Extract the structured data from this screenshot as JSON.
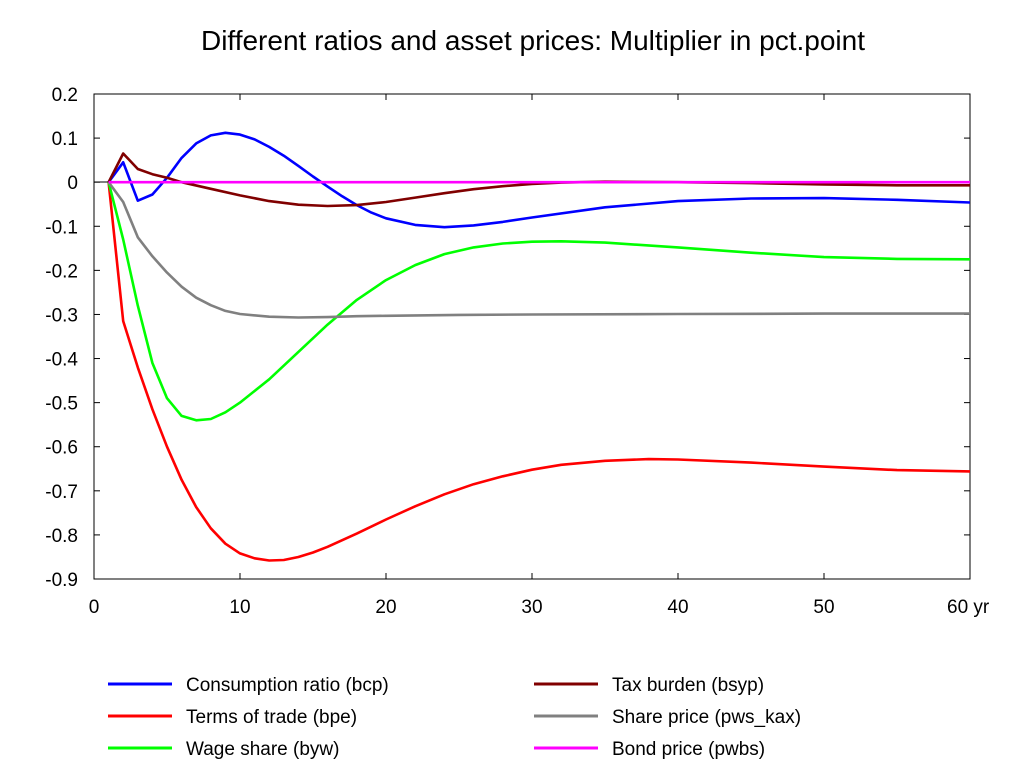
{
  "chart_data": {
    "type": "line",
    "title": "Different ratios and asset prices: Multiplier in pct.point",
    "xlabel": "",
    "ylabel": "",
    "xlim": [
      0,
      60
    ],
    "ylim": [
      -0.9,
      0.2
    ],
    "x_ticks": [
      0,
      10,
      20,
      30,
      40,
      50,
      60
    ],
    "x_tick_labels": [
      "0",
      "10",
      "20",
      "30",
      "40",
      "50",
      "60 yr"
    ],
    "y_ticks": [
      0.2,
      0.1,
      0,
      -0.1,
      -0.2,
      -0.3,
      -0.4,
      -0.5,
      -0.6,
      -0.7,
      -0.8,
      -0.9
    ],
    "y_tick_labels": [
      "0.2",
      "0.1",
      "0",
      "-0.1",
      "-0.2",
      "-0.3",
      "-0.4",
      "-0.5",
      "-0.6",
      "-0.7",
      "-0.8",
      "-0.9"
    ],
    "grid": false,
    "legend_position": "bottom",
    "series": [
      {
        "name": "Consumption ratio (bcp)",
        "color": "#0000ff",
        "points": [
          [
            1,
            0
          ],
          [
            2,
            0.045
          ],
          [
            3,
            -0.042
          ],
          [
            4,
            -0.028
          ],
          [
            5,
            0.01
          ],
          [
            6,
            0.055
          ],
          [
            7,
            0.088
          ],
          [
            8,
            0.106
          ],
          [
            9,
            0.112
          ],
          [
            10,
            0.108
          ],
          [
            11,
            0.097
          ],
          [
            12,
            0.08
          ],
          [
            13,
            0.06
          ],
          [
            14,
            0.037
          ],
          [
            15,
            0.013
          ],
          [
            16,
            -0.01
          ],
          [
            17,
            -0.032
          ],
          [
            18,
            -0.052
          ],
          [
            19,
            -0.069
          ],
          [
            20,
            -0.082
          ],
          [
            22,
            -0.097
          ],
          [
            24,
            -0.102
          ],
          [
            26,
            -0.098
          ],
          [
            28,
            -0.09
          ],
          [
            30,
            -0.08
          ],
          [
            35,
            -0.057
          ],
          [
            40,
            -0.043
          ],
          [
            45,
            -0.037
          ],
          [
            50,
            -0.036
          ],
          [
            55,
            -0.04
          ],
          [
            60,
            -0.046
          ]
        ]
      },
      {
        "name": "Terms of trade (bpe)",
        "color": "#ff0000",
        "points": [
          [
            1,
            0
          ],
          [
            2,
            -0.315
          ],
          [
            3,
            -0.42
          ],
          [
            4,
            -0.515
          ],
          [
            5,
            -0.6
          ],
          [
            6,
            -0.675
          ],
          [
            7,
            -0.737
          ],
          [
            8,
            -0.785
          ],
          [
            9,
            -0.82
          ],
          [
            10,
            -0.842
          ],
          [
            11,
            -0.853
          ],
          [
            12,
            -0.858
          ],
          [
            13,
            -0.857
          ],
          [
            14,
            -0.85
          ],
          [
            15,
            -0.84
          ],
          [
            16,
            -0.827
          ],
          [
            18,
            -0.797
          ],
          [
            20,
            -0.765
          ],
          [
            22,
            -0.735
          ],
          [
            24,
            -0.708
          ],
          [
            26,
            -0.685
          ],
          [
            28,
            -0.667
          ],
          [
            30,
            -0.652
          ],
          [
            32,
            -0.641
          ],
          [
            35,
            -0.632
          ],
          [
            38,
            -0.628
          ],
          [
            40,
            -0.629
          ],
          [
            45,
            -0.636
          ],
          [
            50,
            -0.645
          ],
          [
            55,
            -0.653
          ],
          [
            60,
            -0.656
          ]
        ]
      },
      {
        "name": "Wage share (byw)",
        "color": "#00ff00",
        "points": [
          [
            1,
            0
          ],
          [
            2,
            -0.13
          ],
          [
            3,
            -0.28
          ],
          [
            4,
            -0.41
          ],
          [
            5,
            -0.49
          ],
          [
            6,
            -0.53
          ],
          [
            7,
            -0.54
          ],
          [
            8,
            -0.537
          ],
          [
            9,
            -0.522
          ],
          [
            10,
            -0.5
          ],
          [
            12,
            -0.447
          ],
          [
            14,
            -0.385
          ],
          [
            16,
            -0.323
          ],
          [
            18,
            -0.267
          ],
          [
            20,
            -0.222
          ],
          [
            22,
            -0.188
          ],
          [
            24,
            -0.163
          ],
          [
            26,
            -0.148
          ],
          [
            28,
            -0.139
          ],
          [
            30,
            -0.135
          ],
          [
            32,
            -0.134
          ],
          [
            35,
            -0.137
          ],
          [
            40,
            -0.148
          ],
          [
            45,
            -0.16
          ],
          [
            50,
            -0.17
          ],
          [
            55,
            -0.174
          ],
          [
            60,
            -0.175
          ]
        ]
      },
      {
        "name": "Tax burden (bsyp)",
        "color": "#800000",
        "points": [
          [
            1,
            0
          ],
          [
            2,
            0.065
          ],
          [
            3,
            0.03
          ],
          [
            4,
            0.018
          ],
          [
            5,
            0.01
          ],
          [
            6,
            0.0
          ],
          [
            8,
            -0.015
          ],
          [
            10,
            -0.03
          ],
          [
            12,
            -0.043
          ],
          [
            14,
            -0.051
          ],
          [
            16,
            -0.054
          ],
          [
            18,
            -0.052
          ],
          [
            20,
            -0.045
          ],
          [
            22,
            -0.035
          ],
          [
            24,
            -0.025
          ],
          [
            26,
            -0.016
          ],
          [
            28,
            -0.009
          ],
          [
            30,
            -0.004
          ],
          [
            32,
            -0.001
          ],
          [
            35,
            0.001
          ],
          [
            40,
            0.0
          ],
          [
            45,
            -0.002
          ],
          [
            50,
            -0.005
          ],
          [
            55,
            -0.007
          ],
          [
            60,
            -0.007
          ]
        ]
      },
      {
        "name": "Share price (pws_kax)",
        "color": "#808080",
        "points": [
          [
            1,
            0
          ],
          [
            2,
            -0.045
          ],
          [
            3,
            -0.125
          ],
          [
            4,
            -0.168
          ],
          [
            5,
            -0.205
          ],
          [
            6,
            -0.237
          ],
          [
            7,
            -0.262
          ],
          [
            8,
            -0.279
          ],
          [
            9,
            -0.292
          ],
          [
            10,
            -0.299
          ],
          [
            12,
            -0.305
          ],
          [
            14,
            -0.307
          ],
          [
            16,
            -0.306
          ],
          [
            18,
            -0.304
          ],
          [
            20,
            -0.303
          ],
          [
            25,
            -0.301
          ],
          [
            30,
            -0.3
          ],
          [
            40,
            -0.299
          ],
          [
            50,
            -0.298
          ],
          [
            60,
            -0.298
          ]
        ]
      },
      {
        "name": "Bond price (pwbs)",
        "color": "#ff00ff",
        "points": [
          [
            1,
            0
          ],
          [
            60,
            0
          ]
        ]
      }
    ]
  }
}
